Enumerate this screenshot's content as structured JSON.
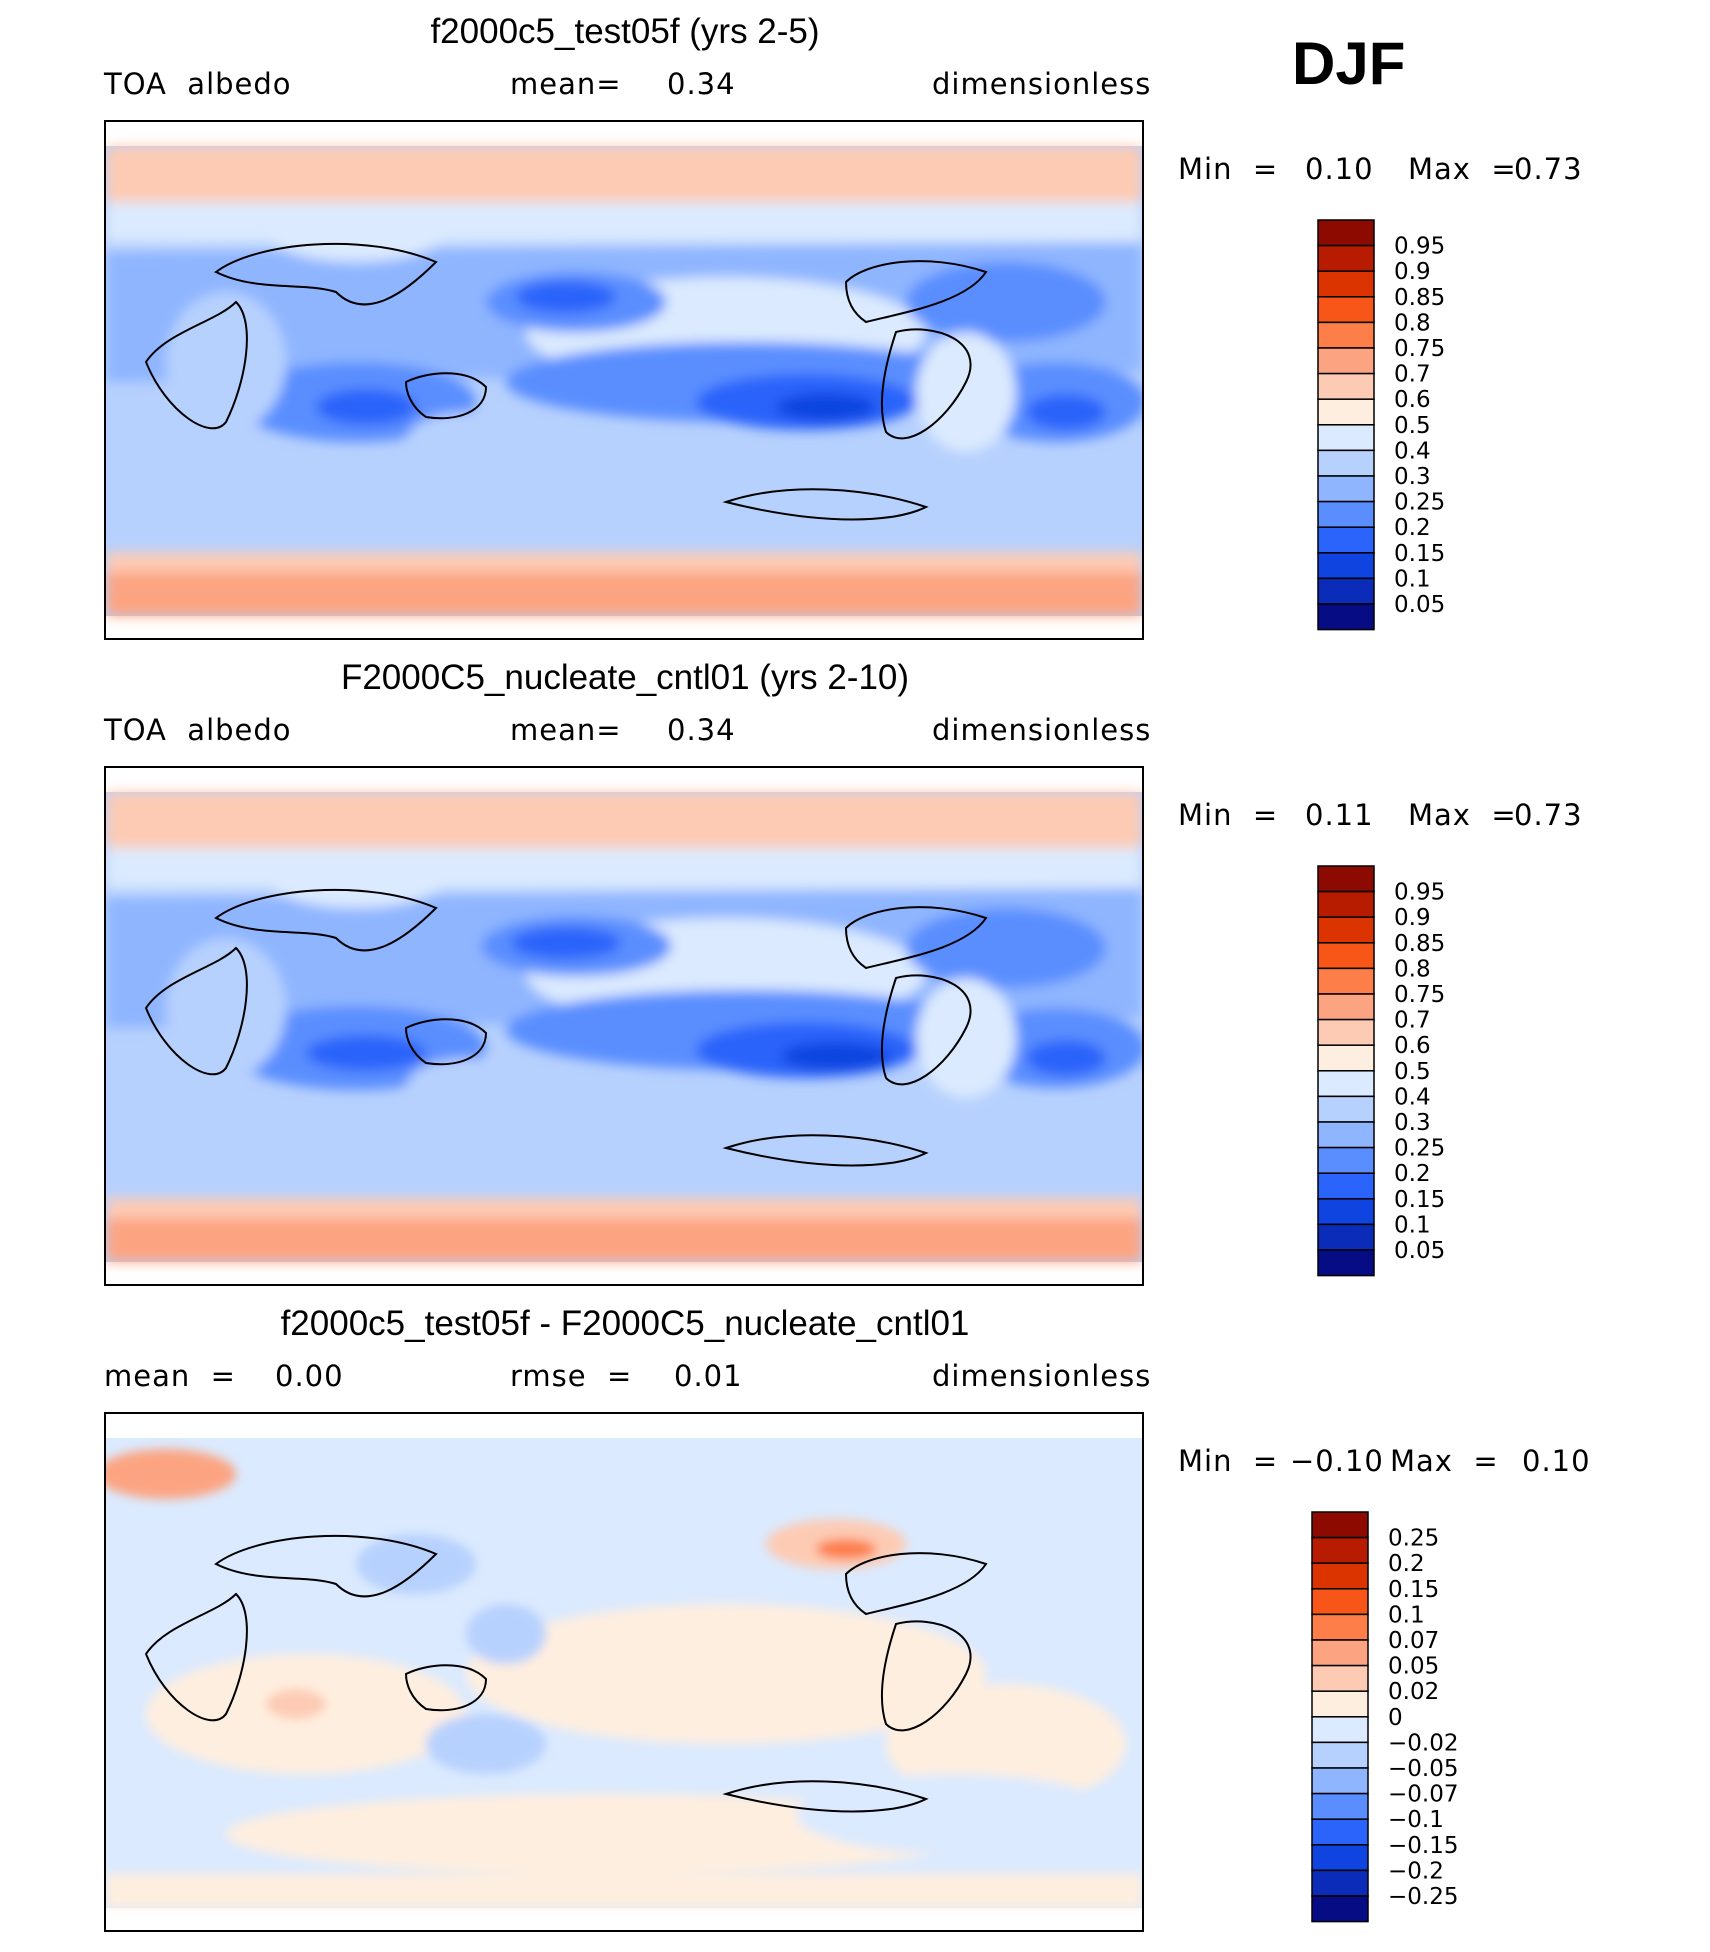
{
  "season": "DJF",
  "panels": [
    {
      "title": "f2000c5_test05f (yrs 2-5)",
      "left_label": "TOA  albedo",
      "mean_label": "mean=",
      "mean_value": "0.34",
      "units": "dimensionless",
      "min_label": "Min  =",
      "min_value": "0.10",
      "max_label": "Max  =",
      "max_value": "0.73",
      "colorbar_labels": [
        "0.95",
        "0.9",
        "0.85",
        "0.8",
        "0.75",
        "0.7",
        "0.6",
        "0.5",
        "0.4",
        "0.3",
        "0.25",
        "0.2",
        "0.15",
        "0.1",
        "0.05"
      ],
      "colorbar_colors": [
        "#8c0a00",
        "#b71b00",
        "#db3400",
        "#f75618",
        "#fd7e48",
        "#fca482",
        "#fdcbb4",
        "#feeedf",
        "#dbeafe",
        "#b7d1fe",
        "#8fb5ff",
        "#5a8eff",
        "#2a64fa",
        "#0f44e0",
        "#0a2cb8",
        "#050c84"
      ]
    },
    {
      "title": "F2000C5_nucleate_cntl01 (yrs 2-10)",
      "left_label": "TOA  albedo",
      "mean_label": "mean=",
      "mean_value": "0.34",
      "units": "dimensionless",
      "min_label": "Min  =",
      "min_value": "0.11",
      "max_label": "Max  =",
      "max_value": "0.73",
      "colorbar_labels": [
        "0.95",
        "0.9",
        "0.85",
        "0.8",
        "0.75",
        "0.7",
        "0.6",
        "0.5",
        "0.4",
        "0.3",
        "0.25",
        "0.2",
        "0.15",
        "0.1",
        "0.05"
      ],
      "colorbar_colors": [
        "#8c0a00",
        "#b71b00",
        "#db3400",
        "#f75618",
        "#fd7e48",
        "#fca482",
        "#fdcbb4",
        "#feeedf",
        "#dbeafe",
        "#b7d1fe",
        "#8fb5ff",
        "#5a8eff",
        "#2a64fa",
        "#0f44e0",
        "#0a2cb8",
        "#050c84"
      ]
    },
    {
      "title": "f2000c5_test05f - F2000C5_nucleate_cntl01",
      "left_label": "mean  =",
      "left_value": "0.00",
      "mean_label": "rmse  =",
      "mean_value": "0.01",
      "units": "dimensionless",
      "min_label": "Min  =",
      "min_value": "−0.10",
      "max_label": "Max  =",
      "max_value": "0.10",
      "colorbar_labels": [
        "0.25",
        "0.2",
        "0.15",
        "0.1",
        "0.07",
        "0.05",
        "0.02",
        "0",
        "−0.02",
        "−0.05",
        "−0.07",
        "−0.1",
        "−0.15",
        "−0.2",
        "−0.25"
      ],
      "colorbar_colors": [
        "#8c0a00",
        "#b71b00",
        "#db3400",
        "#f75618",
        "#fd7e48",
        "#fca482",
        "#fdcbb4",
        "#feeedf",
        "#dbeafe",
        "#b7d1fe",
        "#8fb5ff",
        "#5a8eff",
        "#2a64fa",
        "#0f44e0",
        "#0a2cb8",
        "#050c84"
      ]
    }
  ]
}
